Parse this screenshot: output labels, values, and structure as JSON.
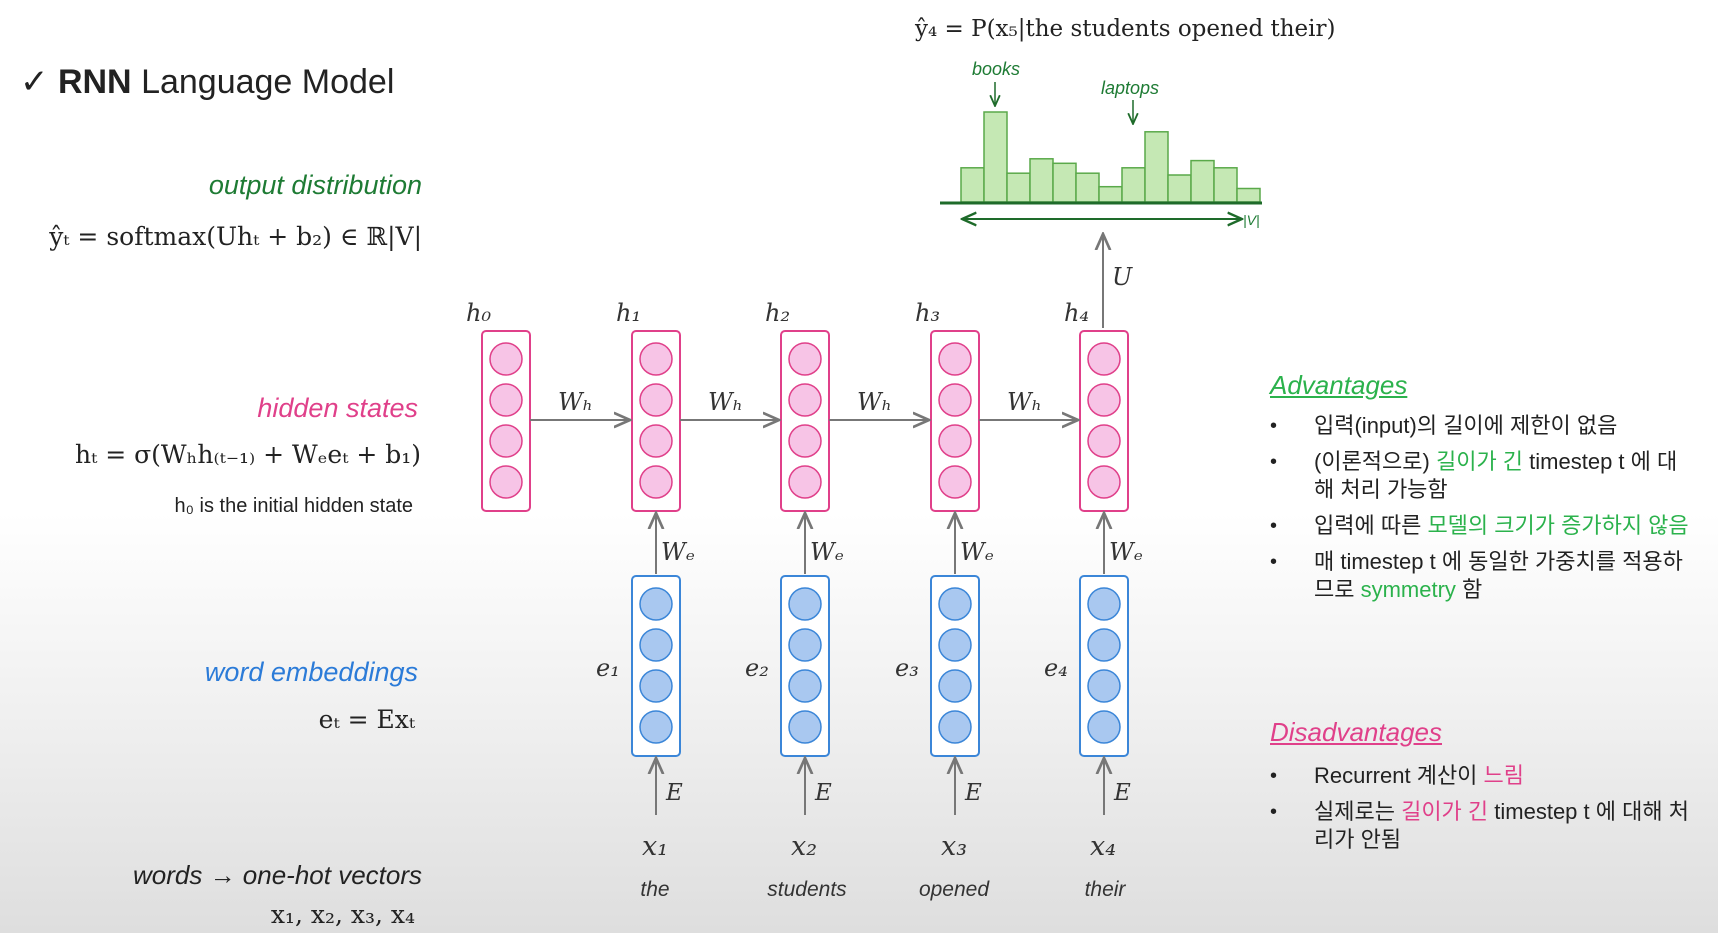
{
  "title": {
    "check": "✓",
    "bold": "RNN",
    "rest": " Language Model"
  },
  "left": {
    "output_label": "output distribution",
    "output_formula": "ŷₜ = softmax(Uhₜ +  b₂) ∈ ℝ|V|",
    "hidden_label": "hidden states",
    "hidden_formula": "hₜ = σ(Wₕh₍ₜ₋₁₎ + Wₑeₜ + b₁)",
    "hidden_note": "h₀ is the initial hidden state",
    "embed_label": "word embeddings",
    "embed_formula": "eₜ = Exₜ",
    "words_label": "words → one-hot vectors",
    "words_formula": "x₁, x₂, x₃, x₄"
  },
  "diagram": {
    "prob_formula": "ŷ₄ = P(x₅|the students opened their)",
    "hist_label_books": "books",
    "hist_label_laptops": "laptops",
    "hist_axis": "|V|",
    "hist_values": [
      0.38,
      1.0,
      0.32,
      0.48,
      0.43,
      0.32,
      0.17,
      0.38,
      0.78,
      0.3,
      0.46,
      0.38,
      0.15
    ],
    "u_label": "U",
    "h_labels": [
      "h₀",
      "h₁",
      "h₂",
      "h₃",
      "h₄"
    ],
    "wh_label": "Wₕ",
    "we_label": "Wₑ",
    "e_labels": [
      "e₁",
      "e₂",
      "e₃",
      "e₄"
    ],
    "E_label": "E",
    "x_labels": [
      "x₁",
      "x₂",
      "x₃",
      "x₄"
    ],
    "words": [
      "the",
      "students",
      "opened",
      "their"
    ],
    "colors": {
      "hidden": "#e0408a",
      "hidden_fill": "#f7c4e6",
      "embed": "#3b86d8",
      "embed_fill": "#a9c8f0",
      "hist": "#5aa94a",
      "hist_fill": "#c5e8b4"
    }
  },
  "advantages": {
    "heading": "Advantages",
    "items": [
      {
        "a": "입력(input)의 길이에 제한이 없음"
      },
      {
        "a": "(이론적으로) ",
        "b": "길이가 긴",
        "c": " timestep t 에 대해 처리 가능함"
      },
      {
        "a": "입력에 따른 ",
        "b": "모델의 크기가 증가하지 않음"
      },
      {
        "a": "매 timestep t 에 동일한 가중치를 적용하므로 ",
        "b": "symmetry",
        "c": " 함"
      }
    ]
  },
  "disadvantages": {
    "heading": "Disadvantages",
    "items": [
      {
        "a": "Recurrent 계산이 ",
        "b": "느림"
      },
      {
        "a": "실제로는 ",
        "b": "길이가 긴",
        "c": " timestep t 에 대해 처리가 안됨"
      }
    ]
  }
}
